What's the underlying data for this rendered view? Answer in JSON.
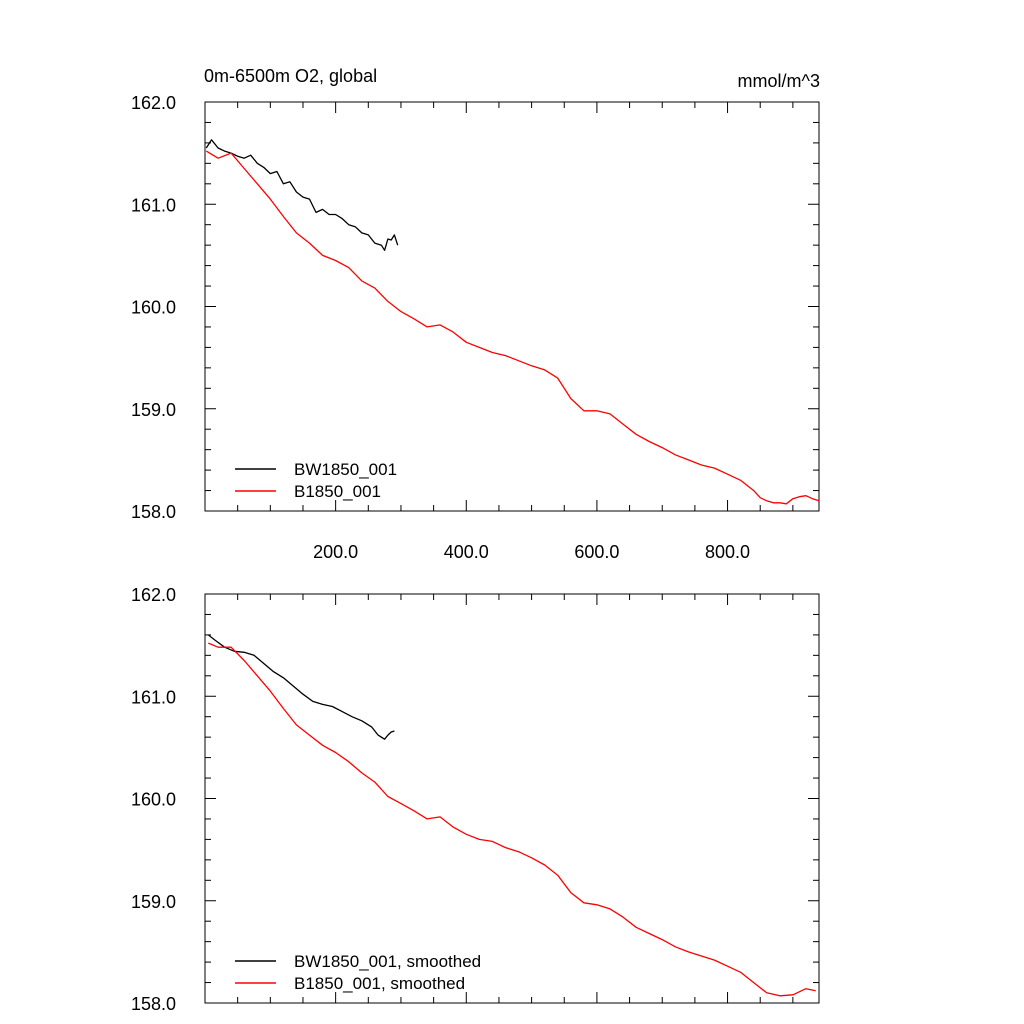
{
  "chart_data": [
    {
      "type": "line",
      "title": "0m-6500m O2, global",
      "units": "mmol/m^3",
      "xlim": [
        0,
        940
      ],
      "ylim": [
        158.0,
        162.0
      ],
      "yticks": [
        "158.0",
        "159.0",
        "160.0",
        "161.0",
        "162.0"
      ],
      "xticks": [
        "200.0",
        "400.0",
        "600.0",
        "800.0"
      ],
      "grid": false,
      "legend_position": "bottom-left",
      "series": [
        {
          "name": "BW1850_001",
          "color": "#000000",
          "x": [
            2,
            10,
            20,
            30,
            40,
            50,
            60,
            70,
            80,
            90,
            100,
            110,
            120,
            130,
            140,
            150,
            160,
            170,
            180,
            190,
            200,
            210,
            220,
            230,
            240,
            250,
            260,
            270,
            275,
            280,
            285,
            290,
            295
          ],
          "y": [
            161.55,
            161.63,
            161.55,
            161.52,
            161.5,
            161.47,
            161.45,
            161.48,
            161.4,
            161.36,
            161.3,
            161.32,
            161.2,
            161.22,
            161.12,
            161.07,
            161.05,
            160.92,
            160.95,
            160.9,
            160.9,
            160.86,
            160.8,
            160.78,
            160.72,
            160.7,
            160.62,
            160.6,
            160.55,
            160.66,
            160.65,
            160.7,
            160.6
          ]
        },
        {
          "name": "B1850_001",
          "color": "#ff0000",
          "x": [
            2,
            20,
            40,
            60,
            80,
            100,
            120,
            140,
            160,
            180,
            200,
            220,
            240,
            260,
            280,
            300,
            320,
            340,
            360,
            380,
            400,
            420,
            440,
            460,
            480,
            500,
            520,
            540,
            560,
            580,
            600,
            620,
            640,
            660,
            680,
            700,
            720,
            740,
            760,
            780,
            800,
            820,
            840,
            850,
            860,
            870,
            880,
            890,
            900,
            910,
            920,
            930,
            940
          ],
          "y": [
            161.52,
            161.45,
            161.5,
            161.35,
            161.2,
            161.05,
            160.88,
            160.72,
            160.62,
            160.5,
            160.45,
            160.38,
            160.25,
            160.18,
            160.05,
            159.95,
            159.88,
            159.8,
            159.82,
            159.75,
            159.65,
            159.6,
            159.55,
            159.52,
            159.47,
            159.42,
            159.38,
            159.3,
            159.1,
            158.98,
            158.98,
            158.95,
            158.85,
            158.75,
            158.68,
            158.62,
            158.55,
            158.5,
            158.45,
            158.42,
            158.36,
            158.3,
            158.2,
            158.13,
            158.1,
            158.08,
            158.08,
            158.07,
            158.12,
            158.14,
            158.15,
            158.12,
            158.1
          ]
        }
      ]
    },
    {
      "type": "line",
      "title": "",
      "xlim": [
        0,
        940
      ],
      "ylim": [
        158.0,
        162.0
      ],
      "yticks": [
        "158.0",
        "159.0",
        "160.0",
        "161.0",
        "162.0"
      ],
      "xticks": [],
      "grid": false,
      "legend_position": "bottom-left",
      "series": [
        {
          "name": "BW1850_001, smoothed",
          "color": "#000000",
          "x": [
            5,
            15,
            30,
            45,
            60,
            75,
            90,
            105,
            120,
            135,
            150,
            165,
            180,
            195,
            210,
            225,
            240,
            255,
            265,
            275,
            280,
            285,
            290
          ],
          "y": [
            161.6,
            161.55,
            161.48,
            161.44,
            161.43,
            161.4,
            161.32,
            161.24,
            161.18,
            161.1,
            161.02,
            160.95,
            160.92,
            160.9,
            160.85,
            160.8,
            160.76,
            160.7,
            160.62,
            160.58,
            160.62,
            160.65,
            160.66
          ]
        },
        {
          "name": "B1850_001, smoothed",
          "color": "#ff0000",
          "x": [
            5,
            20,
            40,
            60,
            80,
            100,
            120,
            140,
            160,
            180,
            200,
            220,
            240,
            260,
            280,
            300,
            320,
            340,
            360,
            380,
            400,
            420,
            440,
            460,
            480,
            500,
            520,
            540,
            560,
            580,
            600,
            620,
            640,
            660,
            680,
            700,
            720,
            740,
            760,
            780,
            800,
            820,
            840,
            860,
            880,
            900,
            920,
            935
          ],
          "y": [
            161.52,
            161.48,
            161.48,
            161.35,
            161.2,
            161.05,
            160.88,
            160.72,
            160.62,
            160.52,
            160.45,
            160.36,
            160.25,
            160.16,
            160.02,
            159.95,
            159.88,
            159.8,
            159.82,
            159.72,
            159.65,
            159.6,
            159.58,
            159.52,
            159.48,
            159.42,
            159.35,
            159.25,
            159.08,
            158.98,
            158.96,
            158.92,
            158.84,
            158.74,
            158.68,
            158.62,
            158.55,
            158.5,
            158.46,
            158.42,
            158.36,
            158.3,
            158.2,
            158.1,
            158.07,
            158.08,
            158.14,
            158.12
          ]
        }
      ]
    }
  ]
}
